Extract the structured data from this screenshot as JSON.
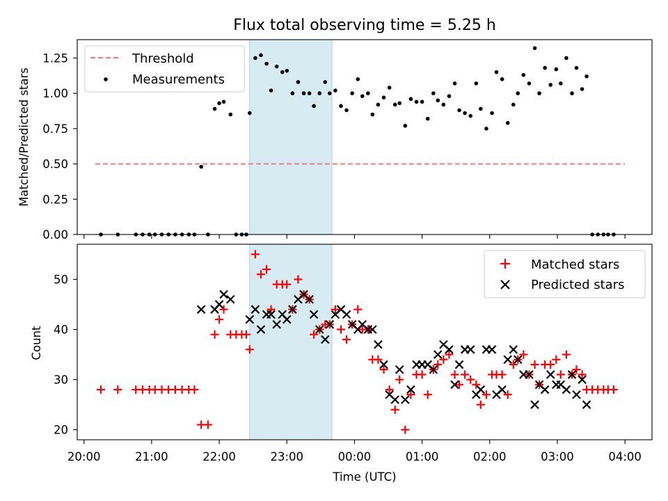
{
  "chart_data": [
    {
      "type": "scatter",
      "title": "Flux total observing time = 5.25 h",
      "xlabel": "",
      "ylabel": "Matched/Predicted stars",
      "ylim": [
        0,
        1.38
      ],
      "yticks": [
        "0.00",
        "0.25",
        "0.50",
        "0.75",
        "1.00",
        "1.25"
      ],
      "shaded_span": [
        "22:27",
        "23:40"
      ],
      "threshold": {
        "name": "Threshold",
        "value": 0.5,
        "x_range": [
          "20:10",
          "04:00"
        ],
        "color": "#f08080"
      },
      "series": [
        {
          "name": "Measurements",
          "color": "#000000",
          "points": [
            [
              "20:15",
              0
            ],
            [
              "20:30",
              0
            ],
            [
              "20:46",
              0
            ],
            [
              "20:52",
              0
            ],
            [
              "20:58",
              0
            ],
            [
              "21:03",
              0
            ],
            [
              "21:09",
              0
            ],
            [
              "21:15",
              0
            ],
            [
              "21:21",
              0
            ],
            [
              "21:27",
              0
            ],
            [
              "21:33",
              0
            ],
            [
              "21:38",
              0
            ],
            [
              "21:44",
              0.48
            ],
            [
              "21:50",
              0
            ],
            [
              "21:56",
              0.89
            ],
            [
              "22:00",
              0.93
            ],
            [
              "22:04",
              0.94
            ],
            [
              "22:10",
              0.85
            ],
            [
              "22:15",
              0
            ],
            [
              "22:20",
              0
            ],
            [
              "22:24",
              0
            ],
            [
              "22:27",
              0.86
            ],
            [
              "22:32",
              1.25
            ],
            [
              "22:37",
              1.27
            ],
            [
              "22:42",
              1.21
            ],
            [
              "22:46",
              1.02
            ],
            [
              "22:51",
              1.19
            ],
            [
              "22:56",
              1.15
            ],
            [
              "23:00",
              1.16
            ],
            [
              "23:05",
              1.0
            ],
            [
              "23:10",
              1.08
            ],
            [
              "23:15",
              1.0
            ],
            [
              "23:20",
              1.0
            ],
            [
              "23:24",
              0.91
            ],
            [
              "23:29",
              1.0
            ],
            [
              "23:34",
              1.08
            ],
            [
              "23:38",
              1.0
            ],
            [
              "23:43",
              1.02
            ],
            [
              "23:48",
              0.91
            ],
            [
              "23:53",
              0.88
            ],
            [
              "23:58",
              1.0
            ],
            [
              "00:03",
              1.1
            ],
            [
              "00:07",
              0.98
            ],
            [
              "00:12",
              1.0
            ],
            [
              "00:16",
              0.85
            ],
            [
              "00:21",
              0.92
            ],
            [
              "00:26",
              0.97
            ],
            [
              "00:31",
              1.04
            ],
            [
              "00:36",
              0.92
            ],
            [
              "00:40",
              0.93
            ],
            [
              "00:45",
              0.77
            ],
            [
              "00:50",
              0.96
            ],
            [
              "00:55",
              0.94
            ],
            [
              "01:00",
              0.94
            ],
            [
              "01:05",
              0.82
            ],
            [
              "01:10",
              1.0
            ],
            [
              "01:14",
              0.95
            ],
            [
              "01:19",
              0.92
            ],
            [
              "01:24",
              0.98
            ],
            [
              "01:29",
              1.07
            ],
            [
              "01:33",
              0.88
            ],
            [
              "01:38",
              0.86
            ],
            [
              "01:43",
              0.84
            ],
            [
              "01:48",
              1.07
            ],
            [
              "01:52",
              0.89
            ],
            [
              "01:57",
              0.75
            ],
            [
              "02:02",
              0.86
            ],
            [
              "02:06",
              1.15
            ],
            [
              "02:11",
              1.1
            ],
            [
              "02:16",
              0.79
            ],
            [
              "02:21",
              0.92
            ],
            [
              "02:25",
              1.0
            ],
            [
              "02:30",
              1.13
            ],
            [
              "02:35",
              1.07
            ],
            [
              "02:40",
              1.32
            ],
            [
              "02:44",
              1.0
            ],
            [
              "02:49",
              1.18
            ],
            [
              "02:54",
              1.06
            ],
            [
              "02:59",
              1.17
            ],
            [
              "03:03",
              1.07
            ],
            [
              "03:08",
              1.25
            ],
            [
              "03:13",
              1.0
            ],
            [
              "03:17",
              1.18
            ],
            [
              "03:22",
              1.03
            ],
            [
              "03:26",
              1.12
            ],
            [
              "03:31",
              0
            ],
            [
              "03:36",
              0
            ],
            [
              "03:41",
              0
            ],
            [
              "03:45",
              0
            ],
            [
              "03:50",
              0
            ]
          ]
        }
      ],
      "legend": {
        "position": "top-left",
        "entries": [
          "Threshold",
          "Measurements"
        ]
      },
      "grid": false
    },
    {
      "type": "scatter",
      "title": "",
      "xlabel": "Time (UTC)",
      "ylabel": "Count",
      "ylim": [
        18,
        57
      ],
      "yticks": [
        "20",
        "30",
        "40",
        "50"
      ],
      "xticks": [
        "20:00",
        "21:00",
        "22:00",
        "23:00",
        "00:00",
        "01:00",
        "02:00",
        "03:00",
        "04:00"
      ],
      "shaded_span": [
        "22:27",
        "23:40"
      ],
      "series": [
        {
          "name": "Matched stars",
          "color": "#ff0000",
          "marker": "+",
          "points": [
            [
              "20:15",
              28
            ],
            [
              "20:30",
              28
            ],
            [
              "20:46",
              28
            ],
            [
              "20:52",
              28
            ],
            [
              "20:58",
              28
            ],
            [
              "21:03",
              28
            ],
            [
              "21:09",
              28
            ],
            [
              "21:15",
              28
            ],
            [
              "21:21",
              28
            ],
            [
              "21:27",
              28
            ],
            [
              "21:33",
              28
            ],
            [
              "21:38",
              28
            ],
            [
              "21:44",
              21
            ],
            [
              "21:50",
              21
            ],
            [
              "21:56",
              39
            ],
            [
              "22:00",
              42
            ],
            [
              "22:04",
              44
            ],
            [
              "22:10",
              39
            ],
            [
              "22:15",
              39
            ],
            [
              "22:20",
              39
            ],
            [
              "22:24",
              39
            ],
            [
              "22:27",
              36
            ],
            [
              "22:32",
              55
            ],
            [
              "22:37",
              51
            ],
            [
              "22:42",
              52
            ],
            [
              "22:46",
              44
            ],
            [
              "22:51",
              49
            ],
            [
              "22:56",
              49
            ],
            [
              "23:00",
              49
            ],
            [
              "23:05",
              44
            ],
            [
              "23:10",
              50
            ],
            [
              "23:15",
              47
            ],
            [
              "23:20",
              46
            ],
            [
              "23:24",
              39
            ],
            [
              "23:29",
              40
            ],
            [
              "23:34",
              41
            ],
            [
              "23:38",
              41
            ],
            [
              "23:43",
              44
            ],
            [
              "23:48",
              40
            ],
            [
              "23:53",
              38
            ],
            [
              "23:58",
              41
            ],
            [
              "00:03",
              44
            ],
            [
              "00:07",
              40
            ],
            [
              "00:12",
              40
            ],
            [
              "00:16",
              34
            ],
            [
              "00:21",
              34
            ],
            [
              "00:26",
              32
            ],
            [
              "00:31",
              28
            ],
            [
              "00:36",
              24
            ],
            [
              "00:40",
              30
            ],
            [
              "00:45",
              20
            ],
            [
              "00:50",
              27
            ],
            [
              "00:55",
              31
            ],
            [
              "01:00",
              31
            ],
            [
              "01:05",
              27
            ],
            [
              "01:10",
              32
            ],
            [
              "01:14",
              33
            ],
            [
              "01:19",
              34
            ],
            [
              "01:24",
              35
            ],
            [
              "01:29",
              31
            ],
            [
              "01:33",
              29
            ],
            [
              "01:38",
              31
            ],
            [
              "01:43",
              30
            ],
            [
              "01:48",
              29
            ],
            [
              "01:52",
              25
            ],
            [
              "01:57",
              27
            ],
            [
              "02:02",
              31
            ],
            [
              "02:06",
              31
            ],
            [
              "02:11",
              31
            ],
            [
              "02:16",
              27
            ],
            [
              "02:21",
              33
            ],
            [
              "02:25",
              34
            ],
            [
              "02:30",
              35
            ],
            [
              "02:35",
              31
            ],
            [
              "02:40",
              33
            ],
            [
              "02:44",
              29
            ],
            [
              "02:49",
              33
            ],
            [
              "02:54",
              33
            ],
            [
              "02:59",
              34
            ],
            [
              "03:03",
              31
            ],
            [
              "03:08",
              35
            ],
            [
              "03:13",
              31
            ],
            [
              "03:17",
              32
            ],
            [
              "03:22",
              31
            ],
            [
              "03:26",
              28
            ],
            [
              "03:31",
              28
            ],
            [
              "03:36",
              28
            ],
            [
              "03:41",
              28
            ],
            [
              "03:45",
              28
            ],
            [
              "03:50",
              28
            ]
          ]
        },
        {
          "name": "Predicted stars",
          "color": "#000000",
          "marker": "x",
          "points": [
            [
              "21:44",
              44
            ],
            [
              "21:56",
              44
            ],
            [
              "22:00",
              45
            ],
            [
              "22:04",
              47
            ],
            [
              "22:10",
              46
            ],
            [
              "22:27",
              42
            ],
            [
              "22:32",
              44
            ],
            [
              "22:37",
              40
            ],
            [
              "22:42",
              43
            ],
            [
              "22:46",
              43
            ],
            [
              "22:51",
              41
            ],
            [
              "22:56",
              43
            ],
            [
              "23:00",
              42
            ],
            [
              "23:05",
              44
            ],
            [
              "23:10",
              46
            ],
            [
              "23:15",
              47
            ],
            [
              "23:20",
              46
            ],
            [
              "23:24",
              43
            ],
            [
              "23:29",
              40
            ],
            [
              "23:34",
              38
            ],
            [
              "23:38",
              41
            ],
            [
              "23:43",
              43
            ],
            [
              "23:48",
              44
            ],
            [
              "23:53",
              43
            ],
            [
              "23:58",
              41
            ],
            [
              "00:03",
              40
            ],
            [
              "00:07",
              41
            ],
            [
              "00:12",
              40
            ],
            [
              "00:16",
              40
            ],
            [
              "00:21",
              37
            ],
            [
              "00:26",
              33
            ],
            [
              "00:31",
              27
            ],
            [
              "00:36",
              26
            ],
            [
              "00:40",
              32
            ],
            [
              "00:45",
              26
            ],
            [
              "00:50",
              28
            ],
            [
              "00:55",
              33
            ],
            [
              "01:00",
              33
            ],
            [
              "01:05",
              33
            ],
            [
              "01:10",
              32
            ],
            [
              "01:14",
              35
            ],
            [
              "01:19",
              37
            ],
            [
              "01:24",
              36
            ],
            [
              "01:29",
              29
            ],
            [
              "01:33",
              33
            ],
            [
              "01:38",
              36
            ],
            [
              "01:43",
              36
            ],
            [
              "01:48",
              27
            ],
            [
              "01:52",
              28
            ],
            [
              "01:57",
              36
            ],
            [
              "02:02",
              36
            ],
            [
              "02:06",
              27
            ],
            [
              "02:11",
              28
            ],
            [
              "02:16",
              34
            ],
            [
              "02:21",
              36
            ],
            [
              "02:25",
              34
            ],
            [
              "02:30",
              31
            ],
            [
              "02:35",
              31
            ],
            [
              "02:40",
              25
            ],
            [
              "02:44",
              29
            ],
            [
              "02:49",
              28
            ],
            [
              "02:54",
              31
            ],
            [
              "02:59",
              29
            ],
            [
              "03:03",
              29
            ],
            [
              "03:08",
              28
            ],
            [
              "03:13",
              31
            ],
            [
              "03:17",
              27
            ],
            [
              "03:22",
              30
            ],
            [
              "03:26",
              25
            ]
          ]
        }
      ],
      "legend": {
        "position": "top-right",
        "entries": [
          "Matched stars",
          "Predicted stars"
        ]
      },
      "grid": false
    }
  ]
}
